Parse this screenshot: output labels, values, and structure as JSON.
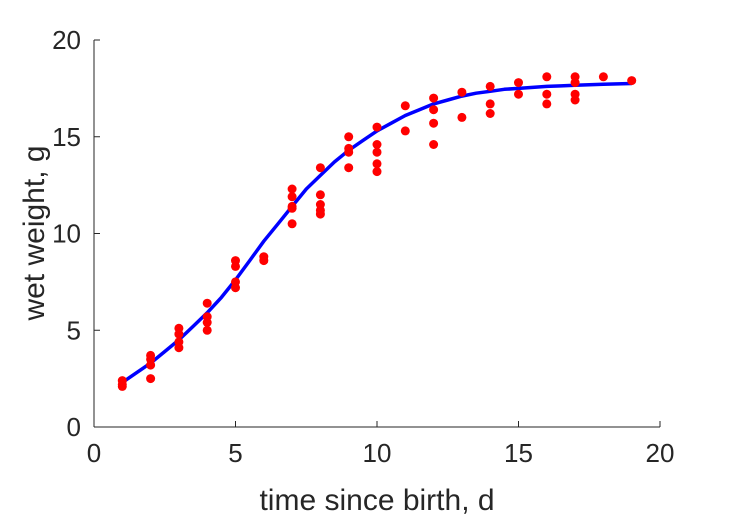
{
  "chart_data": {
    "type": "scatter",
    "title": "",
    "xlabel": "time since birth, d",
    "ylabel": "wet weight, g",
    "xlim": [
      0,
      20
    ],
    "ylim": [
      0,
      20
    ],
    "xticks": [
      0,
      5,
      10,
      15,
      20
    ],
    "yticks": [
      0,
      5,
      10,
      15,
      20
    ],
    "grid": false,
    "series": [
      {
        "kind": "points",
        "color": "#ff0000",
        "points": [
          [
            1,
            2.4
          ],
          [
            1,
            2.2
          ],
          [
            1,
            2.1
          ],
          [
            2,
            3.7
          ],
          [
            2,
            3.5
          ],
          [
            2,
            3.2
          ],
          [
            2,
            2.5
          ],
          [
            3,
            5.1
          ],
          [
            3,
            4.8
          ],
          [
            3,
            4.4
          ],
          [
            3,
            4.1
          ],
          [
            4,
            6.4
          ],
          [
            4,
            5.7
          ],
          [
            4,
            5.4
          ],
          [
            4,
            5.0
          ],
          [
            5,
            8.6
          ],
          [
            5,
            8.3
          ],
          [
            5,
            7.5
          ],
          [
            5,
            7.2
          ],
          [
            6,
            8.8
          ],
          [
            6,
            8.6
          ],
          [
            7,
            12.3
          ],
          [
            7,
            11.9
          ],
          [
            7,
            11.4
          ],
          [
            7,
            11.3
          ],
          [
            7,
            10.5
          ],
          [
            8,
            13.4
          ],
          [
            8,
            12.0
          ],
          [
            8,
            11.5
          ],
          [
            8,
            11.2
          ],
          [
            8,
            11.0
          ],
          [
            9,
            15.0
          ],
          [
            9,
            14.4
          ],
          [
            9,
            14.2
          ],
          [
            9,
            13.4
          ],
          [
            10,
            15.5
          ],
          [
            10,
            14.6
          ],
          [
            10,
            14.2
          ],
          [
            10,
            13.6
          ],
          [
            10,
            13.2
          ],
          [
            11,
            16.6
          ],
          [
            11,
            15.3
          ],
          [
            12,
            17.0
          ],
          [
            12,
            16.4
          ],
          [
            12,
            15.7
          ],
          [
            12,
            14.6
          ],
          [
            13,
            17.3
          ],
          [
            13,
            16.0
          ],
          [
            14,
            17.6
          ],
          [
            14,
            16.7
          ],
          [
            14,
            16.2
          ],
          [
            15,
            17.8
          ],
          [
            15,
            17.2
          ],
          [
            16,
            18.1
          ],
          [
            16,
            17.2
          ],
          [
            16,
            16.7
          ],
          [
            17,
            18.1
          ],
          [
            17,
            17.8
          ],
          [
            17,
            17.2
          ],
          [
            17,
            16.9
          ],
          [
            18,
            18.1
          ],
          [
            19,
            17.9
          ]
        ]
      },
      {
        "kind": "line",
        "color": "#0000ff",
        "x": [
          1,
          1.5,
          2,
          2.5,
          3,
          3.5,
          4,
          4.5,
          5,
          5.5,
          6,
          6.5,
          7,
          7.5,
          8,
          8.5,
          9,
          9.5,
          10,
          10.5,
          11,
          11.5,
          12,
          12.5,
          13,
          13.5,
          14,
          14.5,
          15,
          15.5,
          16,
          16.5,
          17,
          17.5,
          18,
          18.5,
          19
        ],
        "y": [
          2.3,
          2.8,
          3.3,
          3.9,
          4.5,
          5.2,
          5.9,
          6.7,
          7.6,
          8.6,
          9.6,
          10.5,
          11.4,
          12.3,
          13.0,
          13.7,
          14.3,
          14.8,
          15.3,
          15.7,
          16.1,
          16.4,
          16.7,
          16.9,
          17.1,
          17.25,
          17.35,
          17.45,
          17.5,
          17.55,
          17.6,
          17.63,
          17.66,
          17.69,
          17.71,
          17.73,
          17.75
        ]
      }
    ]
  }
}
